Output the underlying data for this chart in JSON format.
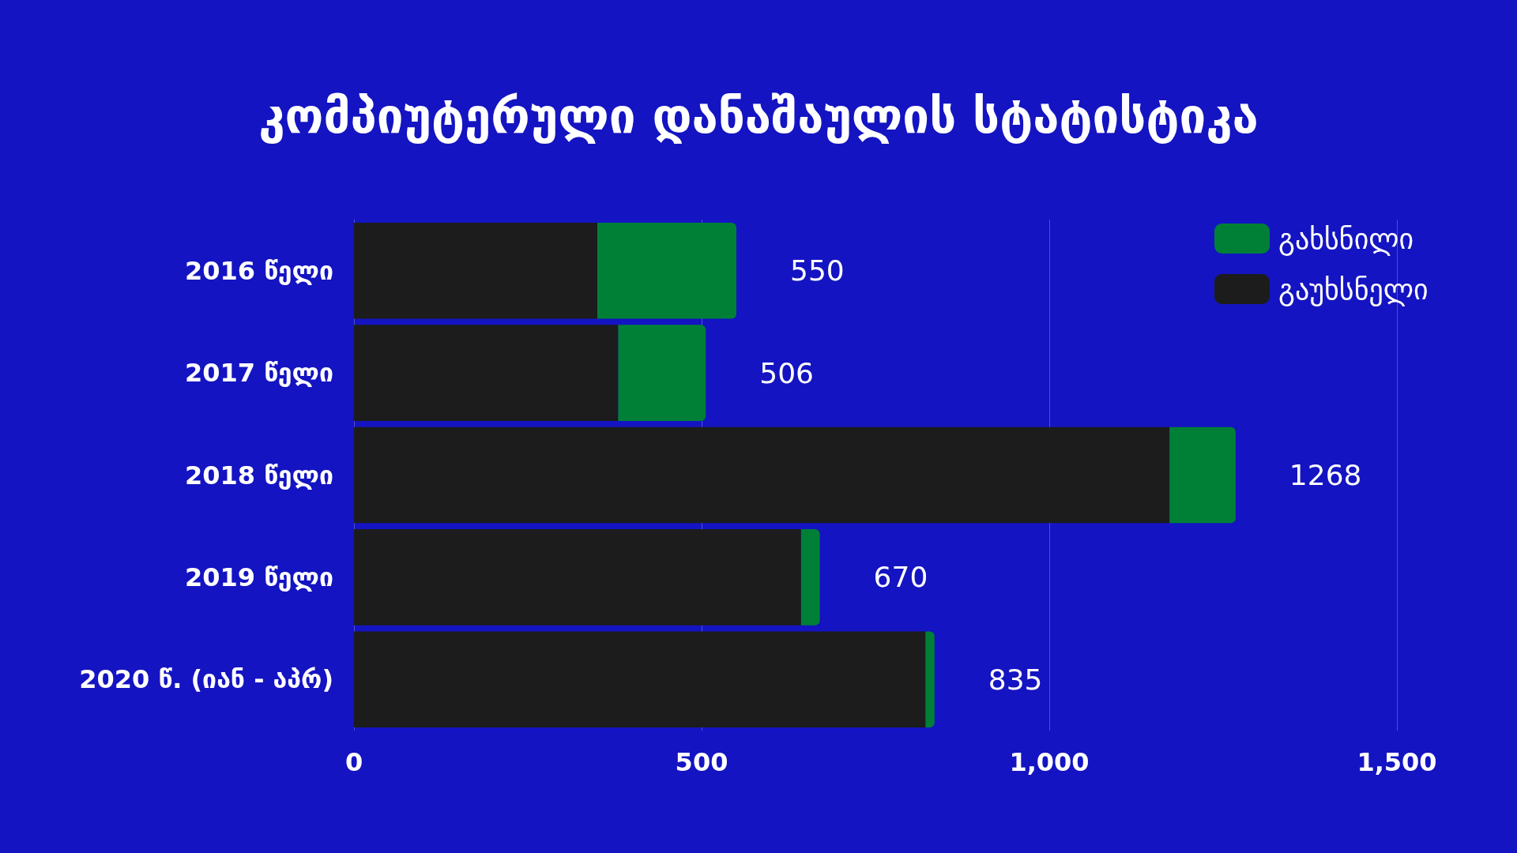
{
  "chart_data": {
    "type": "bar",
    "orientation": "horizontal",
    "stacked": true,
    "title": "კომპიუტერული დანაშაულის სტატისტიკა",
    "categories": [
      "2016 წელი",
      "2017 წელი",
      "2018 წელი",
      "2019 წელი",
      "2020 წ. (იან - აპრ)"
    ],
    "series": [
      {
        "name": "გაუხსნელი",
        "color": "#1c1c1c",
        "values": [
          350,
          380,
          1173,
          643,
          822
        ]
      },
      {
        "name": "გახსნილი",
        "color": "#008037",
        "values": [
          200,
          126,
          95,
          27,
          13
        ]
      }
    ],
    "totals": [
      "550",
      "506",
      "1268",
      "670",
      "835"
    ],
    "xlim": [
      0,
      1500
    ],
    "xticks": [
      0,
      500,
      {
        "value": 1000,
        "label": "1,000"
      },
      {
        "value": 1500,
        "label": "1,500"
      }
    ],
    "grid": "x",
    "legend": "top right"
  }
}
